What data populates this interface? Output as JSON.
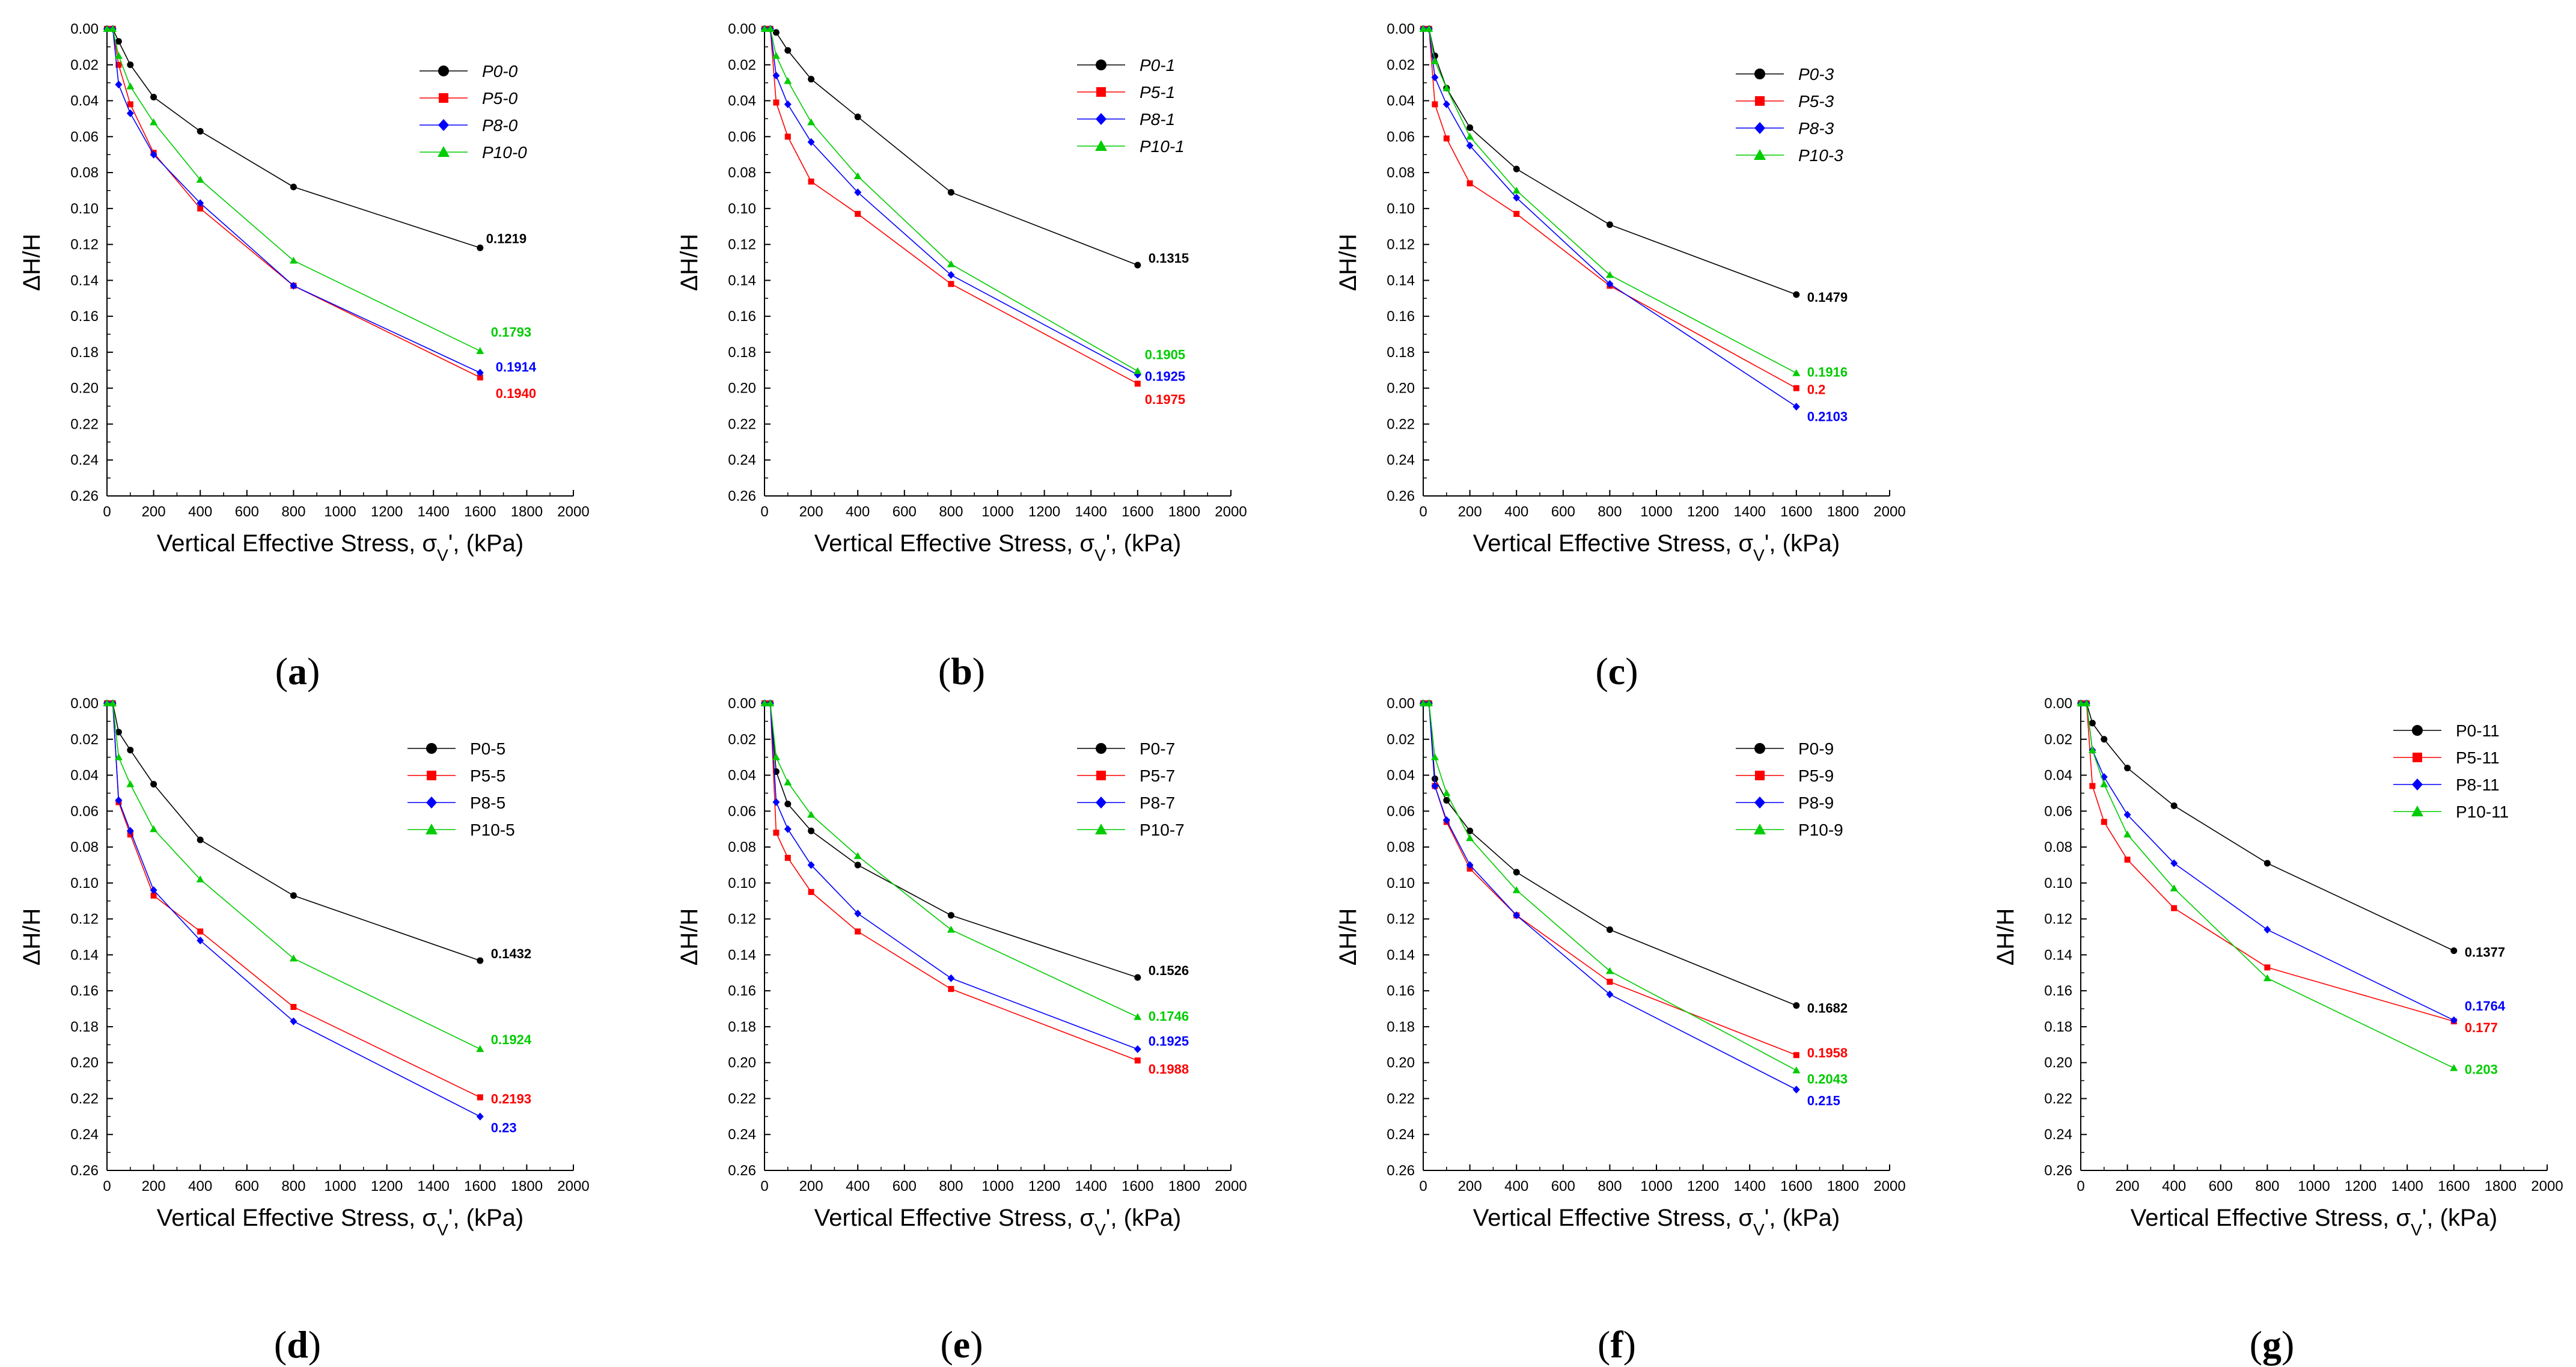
{
  "figure": {
    "x_axis_title": "Vertical Effective Stress, σ",
    "x_axis_sub": "V",
    "x_axis_tail": "', (kPa)",
    "y_axis_title": "ΔH/H"
  },
  "series_colors": [
    "#000000",
    "#ff0000",
    "#0000ff",
    "#00cc00"
  ],
  "series_markers": [
    "circle",
    "square",
    "diamond",
    "triangle"
  ],
  "chart_data": [
    {
      "type": "line",
      "caption": "a",
      "legend_italic": true,
      "x": [
        0,
        25,
        50,
        100,
        200,
        400,
        800,
        1600
      ],
      "xlim": [
        0,
        2000
      ],
      "xticks": [
        0,
        200,
        400,
        600,
        800,
        1000,
        1200,
        1400,
        1600,
        1800,
        2000
      ],
      "ylim": [
        0,
        0.26
      ],
      "yticks": [
        "0.00",
        "0.02",
        "0.04",
        "0.06",
        "0.08",
        "0.10",
        "0.12",
        "0.14",
        "0.16",
        "0.18",
        "0.20",
        "0.22",
        "0.24",
        "0.26"
      ],
      "series": [
        {
          "name": "P0-0",
          "values": [
            0,
            0,
            0.007,
            0.02,
            0.038,
            0.057,
            0.088,
            0.1219
          ],
          "end_label": "0.1219"
        },
        {
          "name": "P5-0",
          "values": [
            0,
            0,
            0.02,
            0.042,
            0.069,
            0.1,
            0.143,
            0.194
          ],
          "end_label": "0.1940"
        },
        {
          "name": "P8-0",
          "values": [
            0,
            0,
            0.031,
            0.047,
            0.07,
            0.097,
            0.143,
            0.1914
          ],
          "end_label": "0.1914"
        },
        {
          "name": "P10-0",
          "values": [
            0,
            0,
            0.015,
            0.032,
            0.052,
            0.084,
            0.129,
            0.1793
          ],
          "end_label": "0.1793"
        }
      ]
    },
    {
      "type": "line",
      "caption": "b",
      "legend_italic": true,
      "x": [
        0,
        25,
        50,
        100,
        200,
        400,
        800,
        1600
      ],
      "xlim": [
        0,
        2000
      ],
      "xticks": [
        0,
        200,
        400,
        600,
        800,
        1000,
        1200,
        1400,
        1600,
        1800,
        2000
      ],
      "ylim": [
        0,
        0.26
      ],
      "yticks": [
        "0.00",
        "0.02",
        "0.04",
        "0.06",
        "0.08",
        "0.10",
        "0.12",
        "0.14",
        "0.16",
        "0.18",
        "0.20",
        "0.22",
        "0.24",
        "0.26"
      ],
      "series": [
        {
          "name": "P0-1",
          "values": [
            0,
            0,
            0.002,
            0.012,
            0.028,
            0.049,
            0.091,
            0.1315
          ],
          "end_label": "0.1315"
        },
        {
          "name": "P5-1",
          "values": [
            0,
            0,
            0.041,
            0.06,
            0.085,
            0.103,
            0.142,
            0.1975
          ],
          "end_label": "0.1975"
        },
        {
          "name": "P8-1",
          "values": [
            0,
            0,
            0.026,
            0.042,
            0.063,
            0.091,
            0.137,
            0.1925
          ],
          "end_label": "0.1925"
        },
        {
          "name": "P10-1",
          "values": [
            0,
            0,
            0.015,
            0.029,
            0.052,
            0.082,
            0.131,
            0.1905
          ],
          "end_label": "0.1905"
        }
      ]
    },
    {
      "type": "line",
      "caption": "c",
      "legend_italic": true,
      "x": [
        0,
        25,
        50,
        100,
        200,
        400,
        800,
        1600
      ],
      "xlim": [
        0,
        2000
      ],
      "xticks": [
        0,
        200,
        400,
        600,
        800,
        1000,
        1200,
        1400,
        1600,
        1800,
        2000
      ],
      "ylim": [
        0,
        0.26
      ],
      "yticks": [
        "0.00",
        "0.02",
        "0.04",
        "0.06",
        "0.08",
        "0.10",
        "0.12",
        "0.14",
        "0.16",
        "0.18",
        "0.20",
        "0.22",
        "0.24",
        "0.26"
      ],
      "series": [
        {
          "name": "P0-3",
          "values": [
            0,
            0,
            0.015,
            0.033,
            0.055,
            0.078,
            0.109,
            0.1479
          ],
          "end_label": "0.1479"
        },
        {
          "name": "P5-3",
          "values": [
            0,
            0,
            0.042,
            0.061,
            0.086,
            0.103,
            0.143,
            0.2
          ],
          "end_label": "0.2"
        },
        {
          "name": "P8-3",
          "values": [
            0,
            0,
            0.027,
            0.042,
            0.065,
            0.094,
            0.142,
            0.2103
          ],
          "end_label": "0.2103"
        },
        {
          "name": "P10-3",
          "values": [
            0,
            0,
            0.018,
            0.033,
            0.06,
            0.09,
            0.137,
            0.1916
          ],
          "end_label": "0.1916"
        }
      ]
    },
    {
      "type": "line",
      "caption": "d",
      "legend_italic": false,
      "x": [
        0,
        25,
        50,
        100,
        200,
        400,
        800,
        1600
      ],
      "xlim": [
        0,
        2000
      ],
      "xticks": [
        0,
        200,
        400,
        600,
        800,
        1000,
        1200,
        1400,
        1600,
        1800,
        2000
      ],
      "ylim": [
        0,
        0.26
      ],
      "yticks": [
        "0.00",
        "0.02",
        "0.04",
        "0.06",
        "0.08",
        "0.10",
        "0.12",
        "0.14",
        "0.16",
        "0.18",
        "0.20",
        "0.22",
        "0.24",
        "0.26"
      ],
      "series": [
        {
          "name": "P0-5",
          "values": [
            0,
            0,
            0.016,
            0.026,
            0.045,
            0.076,
            0.107,
            0.1432
          ],
          "end_label": "0.1432"
        },
        {
          "name": "P5-5",
          "values": [
            0,
            0,
            0.055,
            0.073,
            0.107,
            0.127,
            0.169,
            0.2193
          ],
          "end_label": "0.2193"
        },
        {
          "name": "P8-5",
          "values": [
            0,
            0,
            0.054,
            0.071,
            0.104,
            0.132,
            0.177,
            0.23
          ],
          "end_label": "0.23"
        },
        {
          "name": "P10-5",
          "values": [
            0,
            0,
            0.03,
            0.045,
            0.07,
            0.098,
            0.142,
            0.1924
          ],
          "end_label": "0.1924"
        }
      ]
    },
    {
      "type": "line",
      "caption": "e",
      "legend_italic": false,
      "x": [
        0,
        25,
        50,
        100,
        200,
        400,
        800,
        1600
      ],
      "xlim": [
        0,
        2000
      ],
      "xticks": [
        0,
        200,
        400,
        600,
        800,
        1000,
        1200,
        1400,
        1600,
        1800,
        2000
      ],
      "ylim": [
        0,
        0.26
      ],
      "yticks": [
        "0.00",
        "0.02",
        "0.04",
        "0.06",
        "0.08",
        "0.10",
        "0.12",
        "0.14",
        "0.16",
        "0.18",
        "0.20",
        "0.22",
        "0.24",
        "0.26"
      ],
      "series": [
        {
          "name": "P0-7",
          "values": [
            0,
            0,
            0.038,
            0.056,
            0.071,
            0.09,
            0.118,
            0.1526
          ],
          "end_label": "0.1526"
        },
        {
          "name": "P5-7",
          "values": [
            0,
            0,
            0.072,
            0.086,
            0.105,
            0.127,
            0.159,
            0.1988
          ],
          "end_label": "0.1988"
        },
        {
          "name": "P8-7",
          "values": [
            0,
            0,
            0.055,
            0.07,
            0.09,
            0.117,
            0.153,
            0.1925
          ],
          "end_label": "0.1925"
        },
        {
          "name": "P10-7",
          "values": [
            0,
            0,
            0.03,
            0.044,
            0.062,
            0.085,
            0.126,
            0.1746
          ],
          "end_label": "0.1746"
        }
      ]
    },
    {
      "type": "line",
      "caption": "f",
      "legend_italic": false,
      "x": [
        0,
        25,
        50,
        100,
        200,
        400,
        800,
        1600
      ],
      "xlim": [
        0,
        2000
      ],
      "xticks": [
        0,
        200,
        400,
        600,
        800,
        1000,
        1200,
        1400,
        1600,
        1800,
        2000
      ],
      "ylim": [
        0,
        0.26
      ],
      "yticks": [
        "0.00",
        "0.02",
        "0.04",
        "0.06",
        "0.08",
        "0.10",
        "0.12",
        "0.14",
        "0.16",
        "0.18",
        "0.20",
        "0.22",
        "0.24",
        "0.26"
      ],
      "series": [
        {
          "name": "P0-9",
          "values": [
            0,
            0,
            0.042,
            0.054,
            0.071,
            0.094,
            0.126,
            0.1682
          ],
          "end_label": "0.1682"
        },
        {
          "name": "P5-9",
          "values": [
            0,
            0,
            0.046,
            0.066,
            0.092,
            0.118,
            0.155,
            0.1958
          ],
          "end_label": "0.1958"
        },
        {
          "name": "P8-9",
          "values": [
            0,
            0,
            0.046,
            0.065,
            0.09,
            0.118,
            0.162,
            0.215
          ],
          "end_label": "0.215"
        },
        {
          "name": "P10-9",
          "values": [
            0,
            0,
            0.03,
            0.05,
            0.075,
            0.104,
            0.149,
            0.2043
          ],
          "end_label": "0.2043"
        }
      ]
    },
    {
      "type": "line",
      "caption": "g",
      "legend_italic": false,
      "x": [
        0,
        25,
        50,
        100,
        200,
        400,
        800,
        1600
      ],
      "xlim": [
        0,
        2000
      ],
      "xticks": [
        0,
        200,
        400,
        600,
        800,
        1000,
        1200,
        1400,
        1600,
        1800,
        2000
      ],
      "ylim": [
        0,
        0.26
      ],
      "yticks": [
        "0.00",
        "0.02",
        "0.04",
        "0.06",
        "0.08",
        "0.10",
        "0.12",
        "0.14",
        "0.16",
        "0.18",
        "0.20",
        "0.22",
        "0.24",
        "0.26"
      ],
      "series": [
        {
          "name": "P0-11",
          "values": [
            0,
            0,
            0.011,
            0.02,
            0.036,
            0.057,
            0.089,
            0.1377
          ],
          "end_label": "0.1377"
        },
        {
          "name": "P5-11",
          "values": [
            0,
            0,
            0.046,
            0.066,
            0.087,
            0.114,
            0.147,
            0.177
          ],
          "end_label": "0.177"
        },
        {
          "name": "P8-11",
          "values": [
            0,
            0,
            0.026,
            0.041,
            0.062,
            0.089,
            0.126,
            0.1764
          ],
          "end_label": "0.1764"
        },
        {
          "name": "P10-11",
          "values": [
            0,
            0,
            0.026,
            0.045,
            0.073,
            0.103,
            0.153,
            0.203
          ],
          "end_label": "0.203"
        }
      ]
    }
  ]
}
